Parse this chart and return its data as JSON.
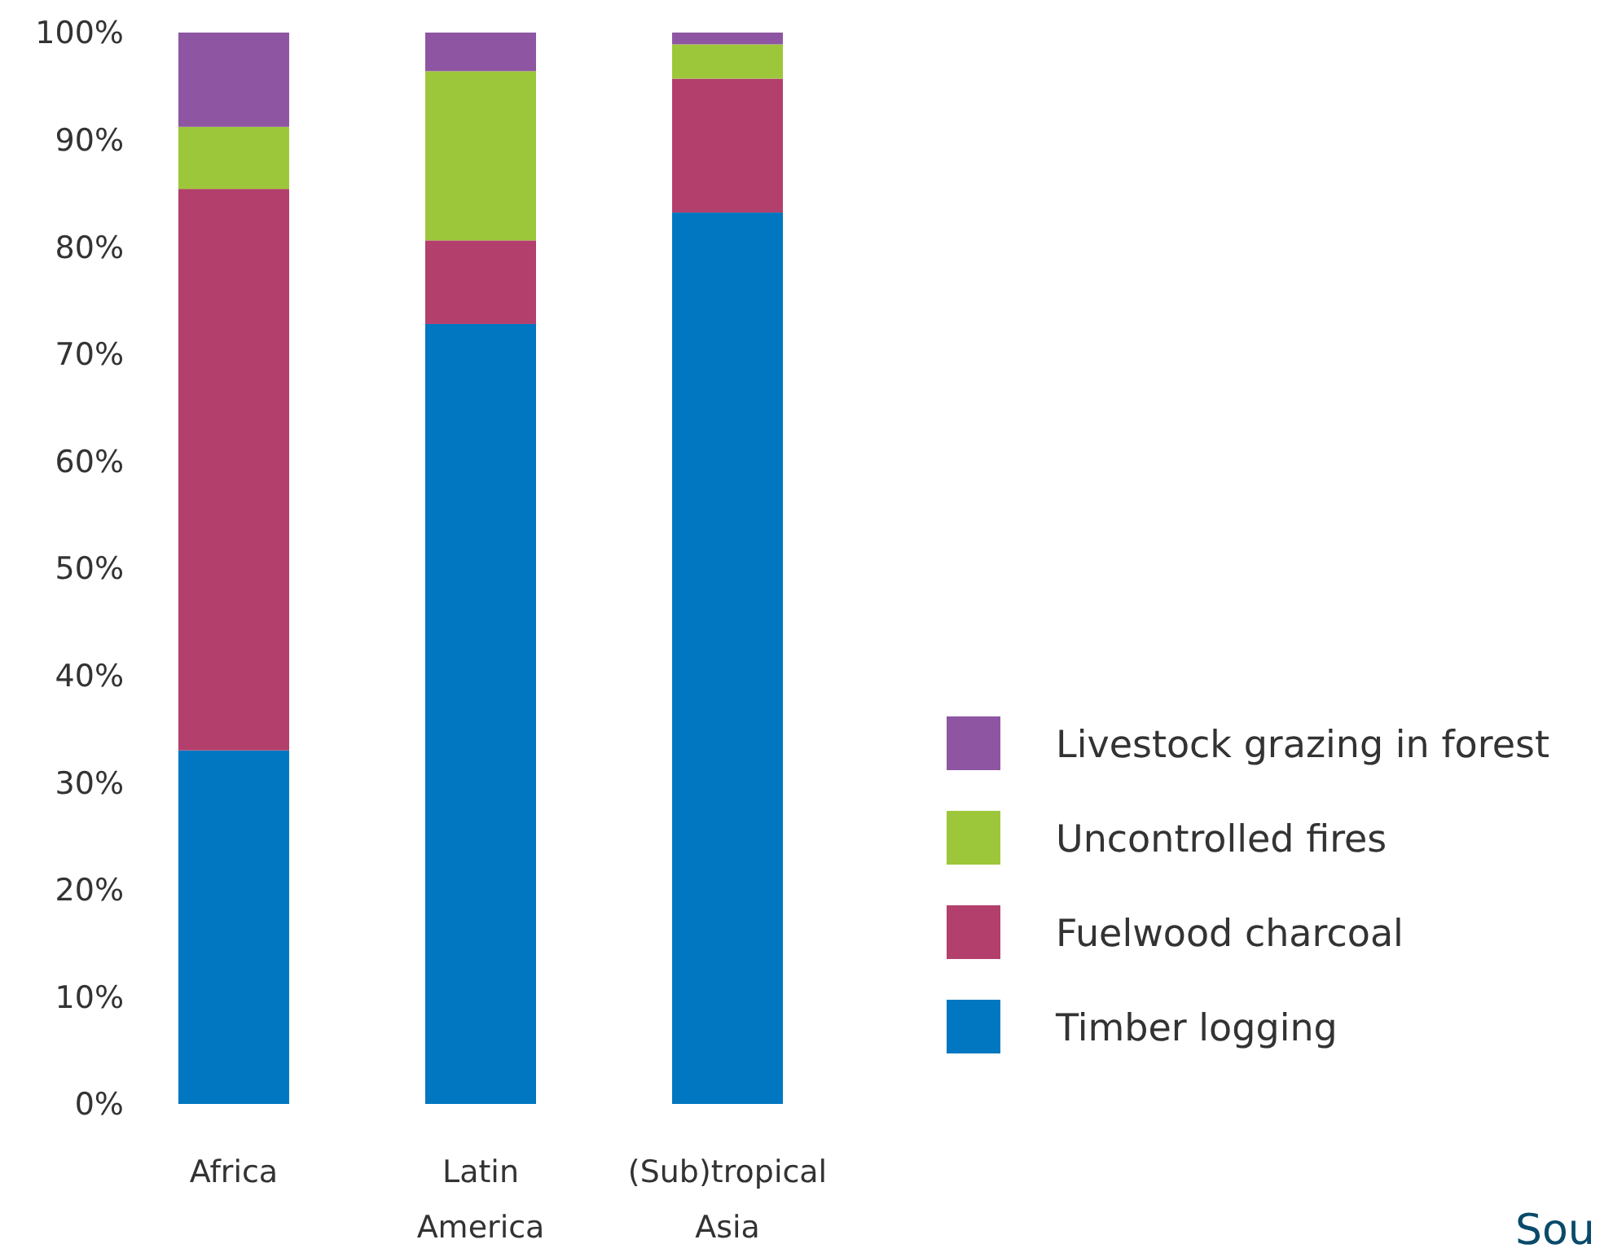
{
  "chart_data": {
    "type": "bar",
    "stacked": true,
    "categories": [
      "Africa",
      "Latin America",
      "(Sub)tropical Asia"
    ],
    "series": [
      {
        "name": "Timber logging",
        "color": "#0077c0",
        "values": [
          33,
          72.8,
          83.2
        ]
      },
      {
        "name": "Fuelwood charcoal",
        "color": "#b33f6c",
        "values": [
          52.4,
          7.8,
          12.5
        ]
      },
      {
        "name": "Uncontrolled fires",
        "color": "#9dc73a",
        "values": [
          5.8,
          15.8,
          3.2
        ]
      },
      {
        "name": "Livestock grazing in forest",
        "color": "#8e56a2",
        "values": [
          8.8,
          3.6,
          1.1
        ]
      }
    ],
    "ylim": [
      0,
      100
    ],
    "yticks": [
      {
        "value": 0,
        "label": "0%"
      },
      {
        "value": 10,
        "label": "10%"
      },
      {
        "value": 20,
        "label": "20%"
      },
      {
        "value": 30,
        "label": "30%"
      },
      {
        "value": 40,
        "label": "40%"
      },
      {
        "value": 50,
        "label": "50%"
      },
      {
        "value": 60,
        "label": "60%"
      },
      {
        "value": 70,
        "label": "70%"
      },
      {
        "value": 80,
        "label": "80%"
      },
      {
        "value": 90,
        "label": "90%"
      },
      {
        "value": 100,
        "label": "100%"
      }
    ],
    "grid": false,
    "legend": "right",
    "annotations": [
      "Sou"
    ]
  }
}
